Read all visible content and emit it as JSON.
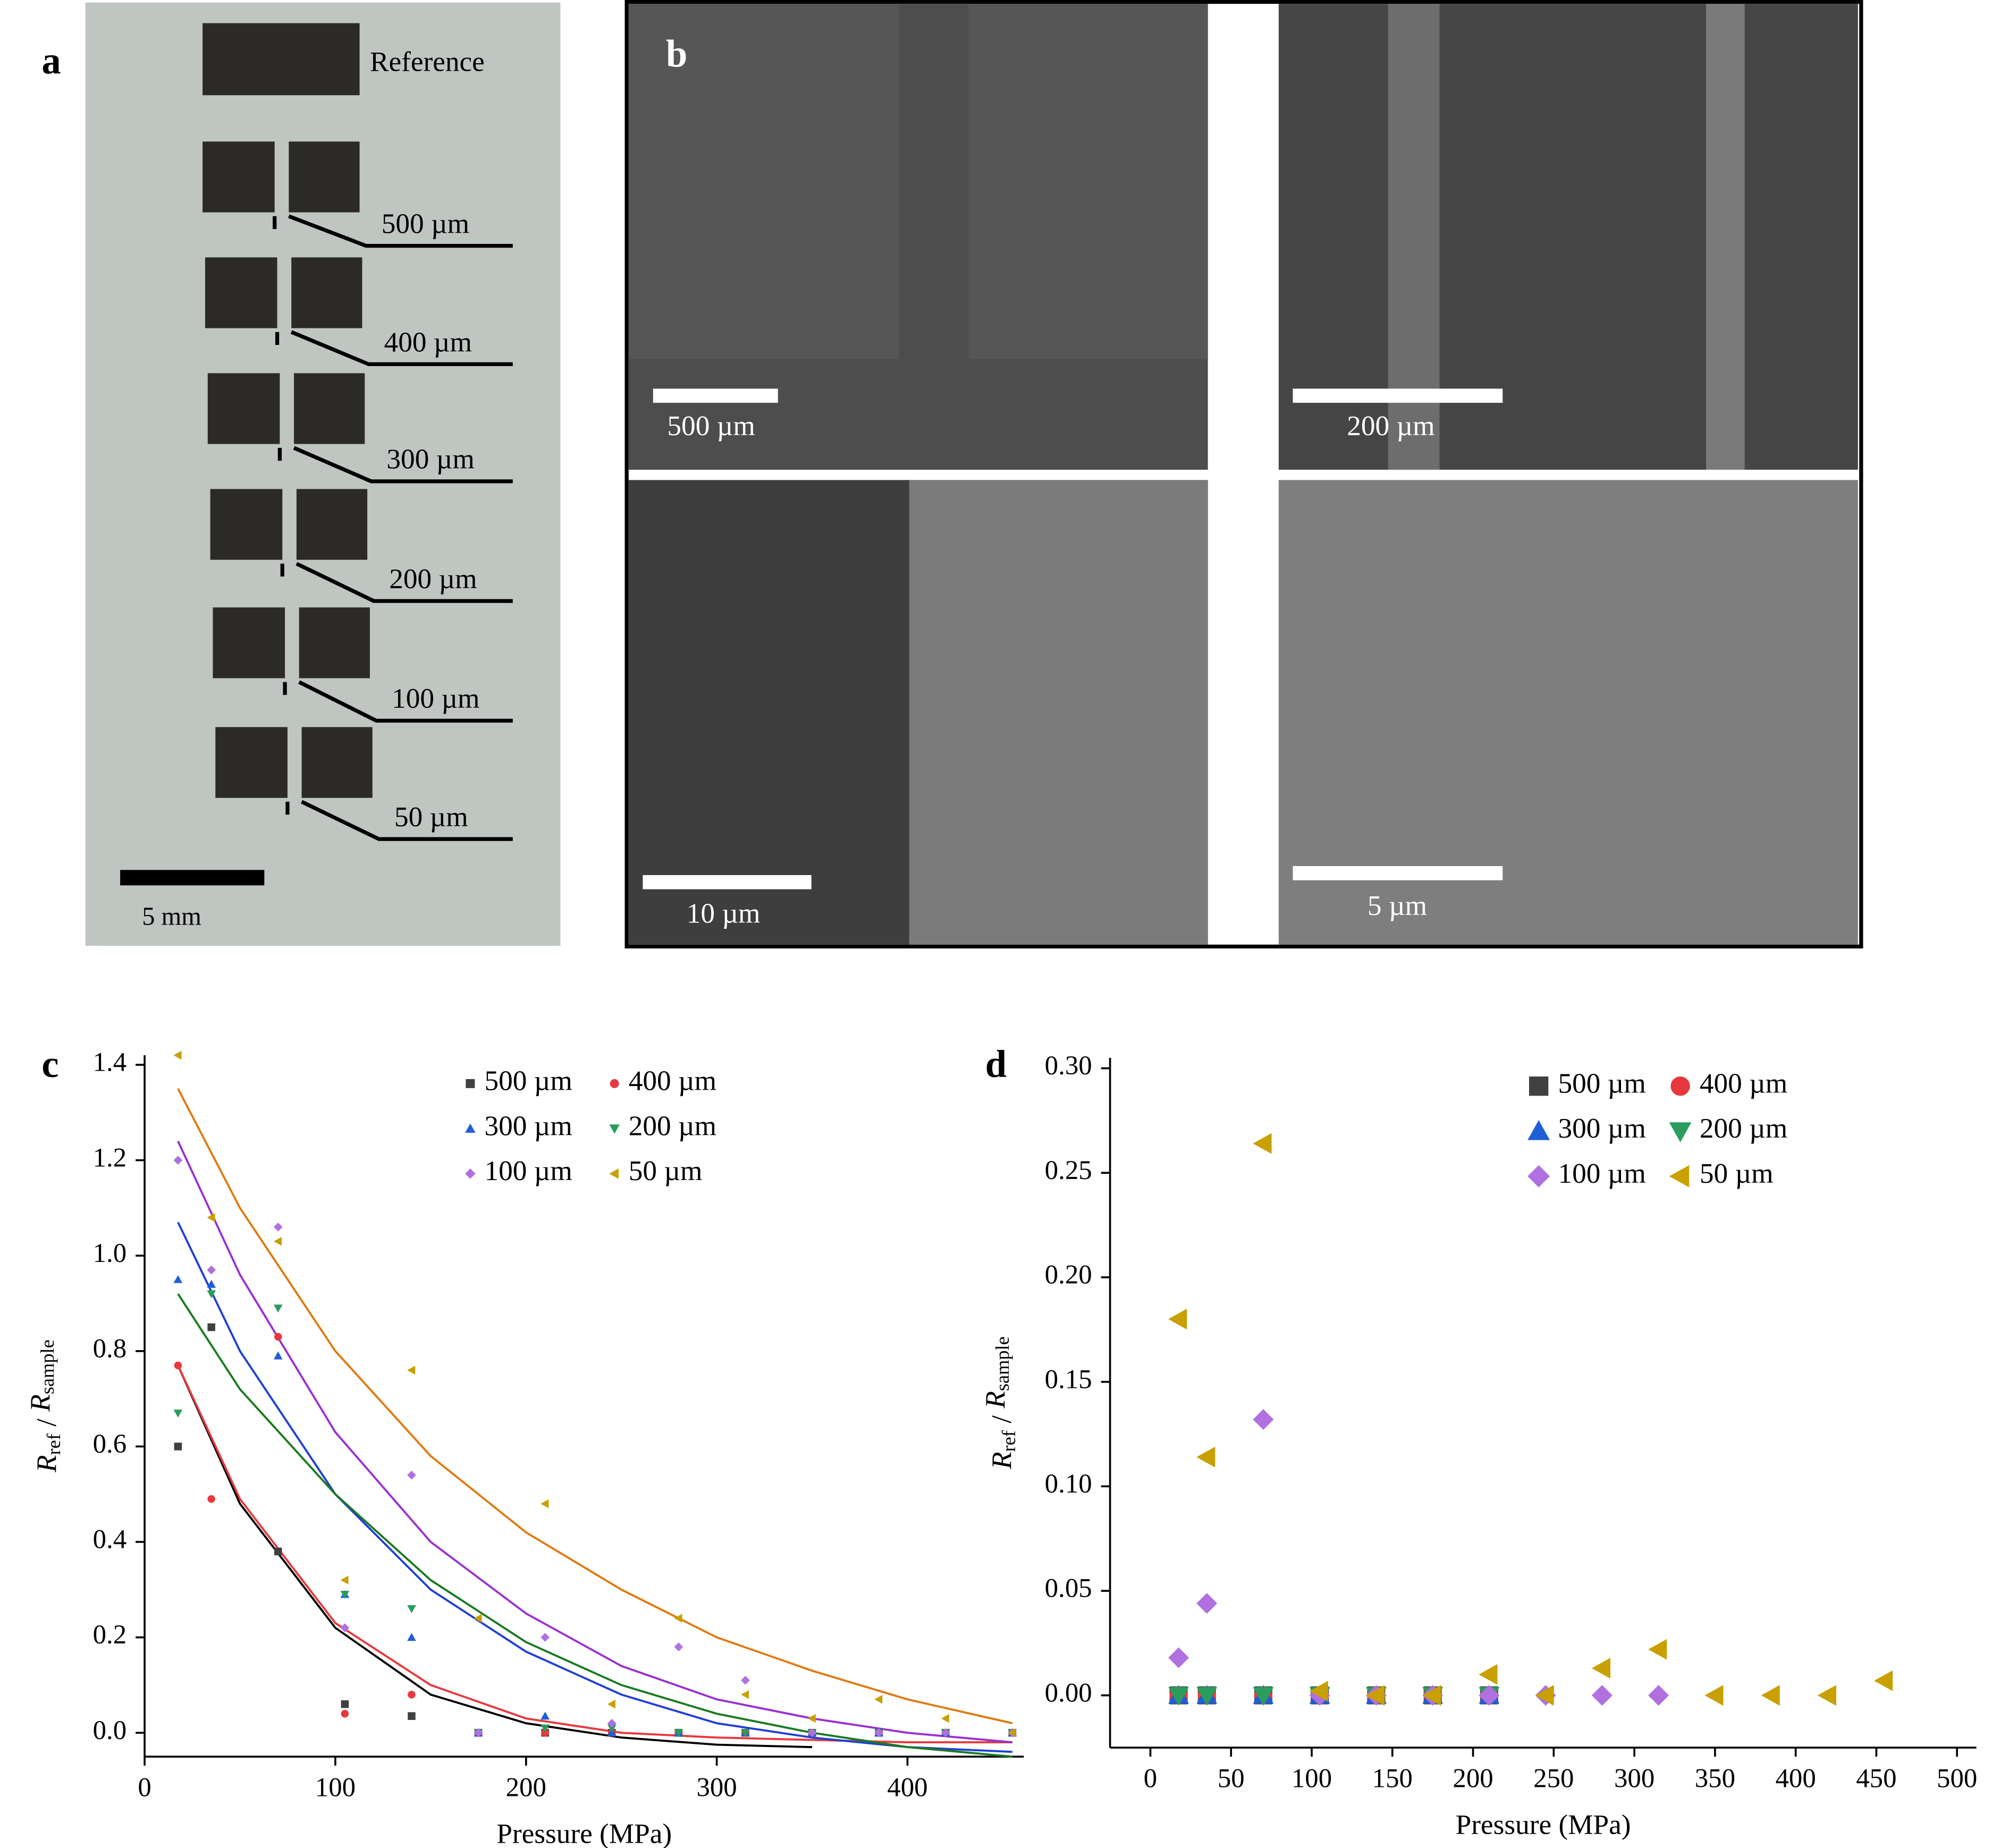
{
  "panels": {
    "a": {
      "label": "a",
      "reference": "Reference",
      "gap_labels": [
        "500 µm",
        "400 µm",
        "300 µm",
        "200 µm",
        "100 µm",
        "50 µm"
      ],
      "scale_bar": "5 mm"
    },
    "b": {
      "label": "b",
      "scale_bars": [
        "500 µm",
        "200 µm",
        "10 µm",
        "5 µm"
      ]
    }
  },
  "chart_data": [
    {
      "type": "scatter",
      "label": "c",
      "xlabel": "Pressure (MPa)",
      "ylabel_parts": [
        "R",
        "ref",
        " / ",
        "R",
        "sample"
      ],
      "xlim": [
        0,
        461
      ],
      "ylim": [
        -0.05,
        1.42
      ],
      "xticks": [
        0,
        100,
        200,
        300,
        400
      ],
      "yticks": [
        {
          "value": 0,
          "label": "0.0"
        },
        0.2,
        0.4,
        0.6,
        0.8,
        {
          "value": 1,
          "label": "1.0"
        },
        1.2,
        1.4
      ],
      "legend": "upper right",
      "marker_size": 6,
      "x": [
        17.5,
        35,
        70,
        105,
        140,
        175,
        210,
        245,
        280,
        315,
        350,
        385,
        420,
        455
      ],
      "series": [
        {
          "name": "500 µm",
          "color": "#404040",
          "marker": "square",
          "values": [
            0.6,
            0.85,
            0.38,
            0.06,
            0.035,
            0,
            0,
            0,
            0,
            0,
            0,
            0,
            0,
            0
          ]
        },
        {
          "name": "400 µm",
          "color": "#e8383d",
          "marker": "circle",
          "values": [
            0.77,
            0.49,
            0.83,
            0.04,
            0.08,
            0,
            0,
            0,
            0,
            0,
            0,
            0,
            0,
            0
          ]
        },
        {
          "name": "300 µm",
          "color": "#1f5fd6",
          "marker": "triangle-up",
          "values": [
            0.95,
            0.94,
            0.79,
            0.29,
            0.2,
            0,
            0.035,
            0,
            0,
            0,
            0,
            0,
            0,
            0
          ]
        },
        {
          "name": "200 µm",
          "color": "#2a9d5c",
          "marker": "triangle-down",
          "values": [
            0.67,
            0.92,
            0.89,
            0.29,
            0.26,
            0,
            0.01,
            0.01,
            0,
            0,
            0,
            0,
            0,
            0
          ]
        },
        {
          "name": "100 µm",
          "color": "#b070e0",
          "marker": "diamond",
          "values": [
            1.2,
            0.97,
            1.06,
            0.22,
            0.54,
            0,
            0.2,
            0.02,
            0.18,
            0.11,
            0,
            0,
            0,
            0
          ]
        },
        {
          "name": "50 µm",
          "color": "#c8a000",
          "marker": "triangle-left",
          "values": [
            1.42,
            1.08,
            1.03,
            0.32,
            0.76,
            0.24,
            0.48,
            0.06,
            0.24,
            0.08,
            0.03,
            0.07,
            0.03,
            0
          ]
        }
      ],
      "fit_curves": [
        {
          "color": "#000000",
          "x": [
            17.5,
            50,
            100,
            150,
            200,
            250,
            300,
            350
          ],
          "values": [
            0.77,
            0.48,
            0.22,
            0.08,
            0.02,
            -0.01,
            -0.025,
            -0.03
          ]
        },
        {
          "color": "#e8383d",
          "x": [
            17.5,
            50,
            100,
            150,
            200,
            250,
            300,
            350,
            400,
            455
          ],
          "values": [
            0.77,
            0.49,
            0.23,
            0.1,
            0.03,
            0,
            -0.01,
            -0.015,
            -0.02,
            -0.02
          ]
        },
        {
          "color": "#1f3fd6",
          "x": [
            17.5,
            50,
            100,
            150,
            200,
            250,
            300,
            350,
            400,
            455
          ],
          "values": [
            1.07,
            0.8,
            0.5,
            0.3,
            0.17,
            0.08,
            0.02,
            -0.01,
            -0.03,
            -0.04
          ]
        },
        {
          "color": "#1a7a20",
          "x": [
            17.5,
            50,
            100,
            150,
            200,
            250,
            300,
            350,
            400,
            455
          ],
          "values": [
            0.92,
            0.72,
            0.5,
            0.32,
            0.19,
            0.1,
            0.04,
            0,
            -0.03,
            -0.05
          ]
        },
        {
          "color": "#9a30d0",
          "x": [
            17.5,
            50,
            100,
            150,
            200,
            250,
            300,
            350,
            400,
            455
          ],
          "values": [
            1.24,
            0.96,
            0.63,
            0.4,
            0.25,
            0.14,
            0.07,
            0.03,
            0,
            -0.02
          ]
        },
        {
          "color": "#e07a10",
          "x": [
            17.5,
            50,
            100,
            150,
            200,
            250,
            300,
            350,
            400,
            455
          ],
          "values": [
            1.35,
            1.1,
            0.8,
            0.58,
            0.42,
            0.3,
            0.2,
            0.13,
            0.07,
            0.02
          ]
        }
      ]
    },
    {
      "type": "scatter",
      "label": "d",
      "xlabel": "Pressure (MPa)",
      "ylabel_parts": [
        "R",
        "ref",
        " / ",
        "R",
        "sample"
      ],
      "xlim": [
        -25,
        512
      ],
      "ylim": [
        -0.025,
        0.305
      ],
      "xticks": [
        0,
        50,
        100,
        150,
        200,
        250,
        300,
        350,
        400,
        450,
        500
      ],
      "yticks": [
        {
          "value": 0,
          "label": "0.00"
        },
        {
          "value": 0.05,
          "label": "0.05"
        },
        {
          "value": 0.1,
          "label": "0.10"
        },
        {
          "value": 0.15,
          "label": "0.15"
        },
        {
          "value": 0.2,
          "label": "0.20"
        },
        {
          "value": 0.25,
          "label": "0.25"
        },
        {
          "value": 0.3,
          "label": "0.30"
        }
      ],
      "legend": "upper right",
      "marker_size": 14,
      "series": [
        {
          "name": "500 µm",
          "color": "#404040",
          "marker": "square",
          "x": [
            17.5,
            35,
            70,
            105,
            140,
            175,
            210
          ],
          "values": [
            0,
            0,
            0,
            0,
            0,
            0,
            0
          ]
        },
        {
          "name": "400 µm",
          "color": "#e8383d",
          "marker": "circle",
          "x": [
            17.5,
            35,
            70,
            105,
            140,
            175,
            210
          ],
          "values": [
            0,
            0,
            0,
            0,
            0,
            0,
            0
          ]
        },
        {
          "name": "300 µm",
          "color": "#1f5fd6",
          "marker": "triangle-up",
          "x": [
            17.5,
            35,
            70,
            105,
            140,
            175,
            210
          ],
          "values": [
            0,
            0,
            0,
            0,
            0,
            0,
            0
          ]
        },
        {
          "name": "200 µm",
          "color": "#2a9d5c",
          "marker": "triangle-down",
          "x": [
            17.5,
            35,
            70,
            105,
            140,
            175,
            210
          ],
          "values": [
            0,
            0,
            0,
            0,
            0,
            0,
            0
          ]
        },
        {
          "name": "100 µm",
          "color": "#b070e0",
          "marker": "diamond",
          "x": [
            17.5,
            35,
            70,
            105,
            140,
            175,
            210,
            245,
            280,
            315
          ],
          "values": [
            0.018,
            0.044,
            0.132,
            0,
            0,
            0,
            0,
            0,
            0,
            0
          ]
        },
        {
          "name": "50 µm",
          "color": "#c8a000",
          "marker": "triangle-left",
          "x": [
            17.5,
            35,
            70,
            105,
            140,
            175,
            210,
            245,
            280,
            315,
            350,
            385,
            420,
            455
          ],
          "values": [
            0.18,
            0.114,
            0.264,
            0.002,
            0,
            0,
            0.01,
            0,
            0.013,
            0.022,
            0,
            0,
            0,
            0.007
          ]
        }
      ]
    }
  ]
}
